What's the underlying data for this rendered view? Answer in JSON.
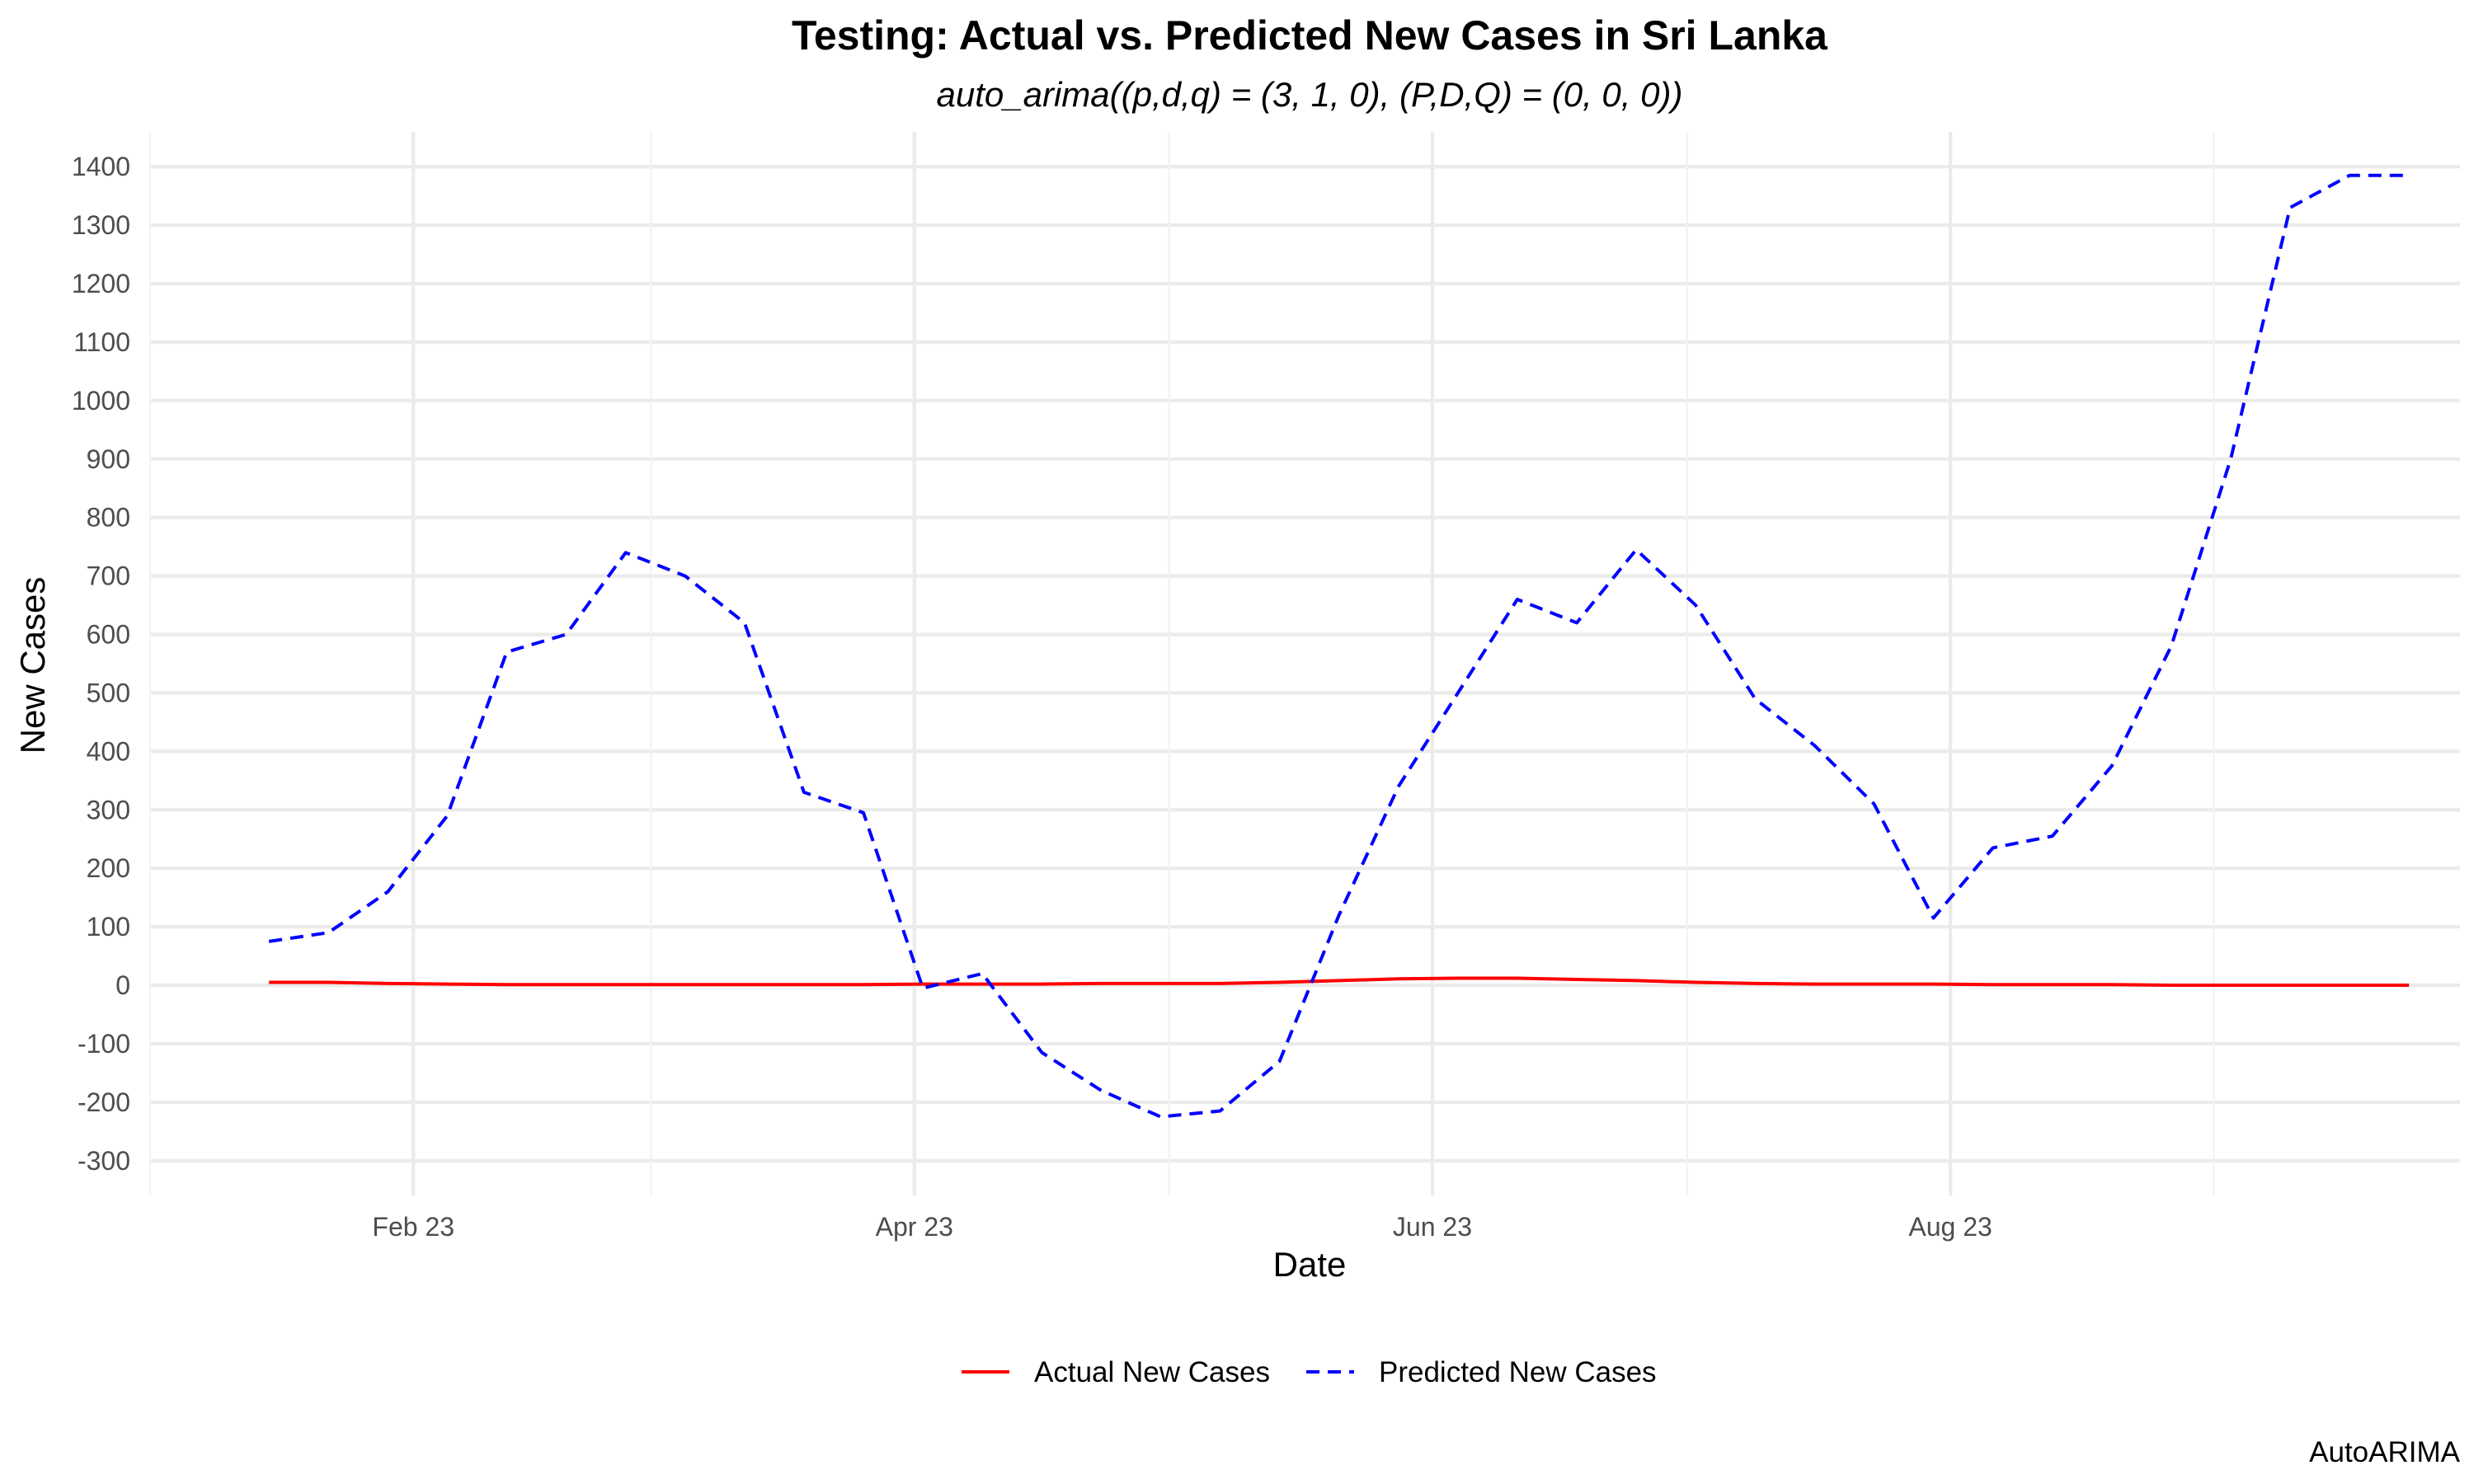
{
  "chart_data": {
    "type": "line",
    "title": "Testing: Actual vs. Predicted New Cases in Sri Lanka",
    "subtitle": "auto_arima((p,d,q) = (3, 1, 0), (P,D,Q) = (0, 0, 0))",
    "xlabel": "Date",
    "ylabel": "New Cases",
    "caption": "AutoARIMA",
    "x_ticks": [
      "Feb 23",
      "Apr 23",
      "Jun 23",
      "Aug 23"
    ],
    "y_ticks": [
      "-300",
      "-200",
      "-100",
      "0",
      "100",
      "200",
      "300",
      "400",
      "500",
      "600",
      "700",
      "800",
      "900",
      "1000",
      "1100",
      "1200",
      "1300",
      "1400"
    ],
    "ylim": [
      -300,
      1400
    ],
    "xlim": [
      "2023-01-01",
      "2023-09-30"
    ],
    "grid": true,
    "legend_position": "bottom",
    "x": [
      "2023-01-15",
      "2023-01-22",
      "2023-01-29",
      "2023-02-05",
      "2023-02-12",
      "2023-02-19",
      "2023-02-26",
      "2023-03-05",
      "2023-03-12",
      "2023-03-19",
      "2023-03-26",
      "2023-04-02",
      "2023-04-09",
      "2023-04-16",
      "2023-04-23",
      "2023-04-30",
      "2023-05-07",
      "2023-05-14",
      "2023-05-21",
      "2023-05-28",
      "2023-06-04",
      "2023-06-11",
      "2023-06-18",
      "2023-06-25",
      "2023-07-02",
      "2023-07-09",
      "2023-07-16",
      "2023-07-23",
      "2023-07-30",
      "2023-08-06",
      "2023-08-13",
      "2023-08-20",
      "2023-08-27",
      "2023-09-03",
      "2023-09-10",
      "2023-09-17",
      "2023-09-24"
    ],
    "series": [
      {
        "name": "Actual New Cases",
        "color": "#ff0000",
        "dash": "solid",
        "values": [
          5,
          5,
          3,
          2,
          1,
          1,
          1,
          1,
          1,
          1,
          1,
          2,
          2,
          2,
          3,
          3,
          3,
          5,
          8,
          11,
          12,
          12,
          10,
          8,
          5,
          3,
          2,
          2,
          2,
          1,
          1,
          1,
          0,
          0,
          0,
          0,
          0
        ]
      },
      {
        "name": "Predicted New Cases",
        "color": "#0000ff",
        "dash": "dashed",
        "values": [
          75,
          90,
          160,
          290,
          570,
          600,
          740,
          700,
          620,
          330,
          295,
          -5,
          20,
          -115,
          -180,
          -225,
          -215,
          -130,
          120,
          340,
          500,
          660,
          620,
          745,
          650,
          490,
          410,
          310,
          115,
          235,
          255,
          375,
          580,
          900,
          1330,
          1385,
          1385
        ]
      }
    ]
  }
}
